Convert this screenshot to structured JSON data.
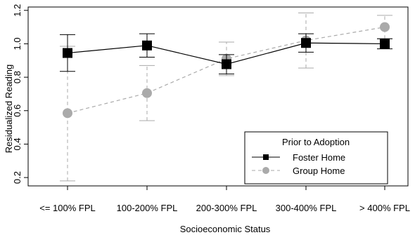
{
  "chart_data": {
    "type": "line",
    "categories": [
      "<= 100% FPL",
      "100-200% FPL",
      "200-300% FPL",
      "300-400% FPL",
      "> 400% FPL"
    ],
    "xlabel": "Socioeconomic Status",
    "ylabel": "Residualized Reading",
    "ylim": [
      0.15,
      1.22
    ],
    "yticks": [
      "0.2",
      "0.4",
      "0.6",
      "0.8",
      "1.0",
      "1.2"
    ],
    "grid": false,
    "legend": {
      "title": "Prior to Adoption",
      "placement": "bottom-right"
    },
    "series": [
      {
        "name": "Foster Home",
        "values": [
          0.945,
          0.99,
          0.878,
          1.005,
          1.0
        ],
        "lower": [
          0.835,
          0.92,
          0.82,
          0.95,
          0.97
        ],
        "upper": [
          1.055,
          1.06,
          0.935,
          1.06,
          1.03
        ],
        "color": "#000000",
        "marker": "square",
        "line": "solid"
      },
      {
        "name": "Group Home",
        "values": [
          0.585,
          0.705,
          0.91,
          1.02,
          1.1
        ],
        "lower": [
          0.18,
          0.54,
          0.81,
          0.855,
          1.03
        ],
        "upper": [
          0.985,
          0.87,
          1.01,
          1.185,
          1.17
        ],
        "color": "#aaaaaa",
        "marker": "circle",
        "line": "dashed"
      }
    ]
  }
}
